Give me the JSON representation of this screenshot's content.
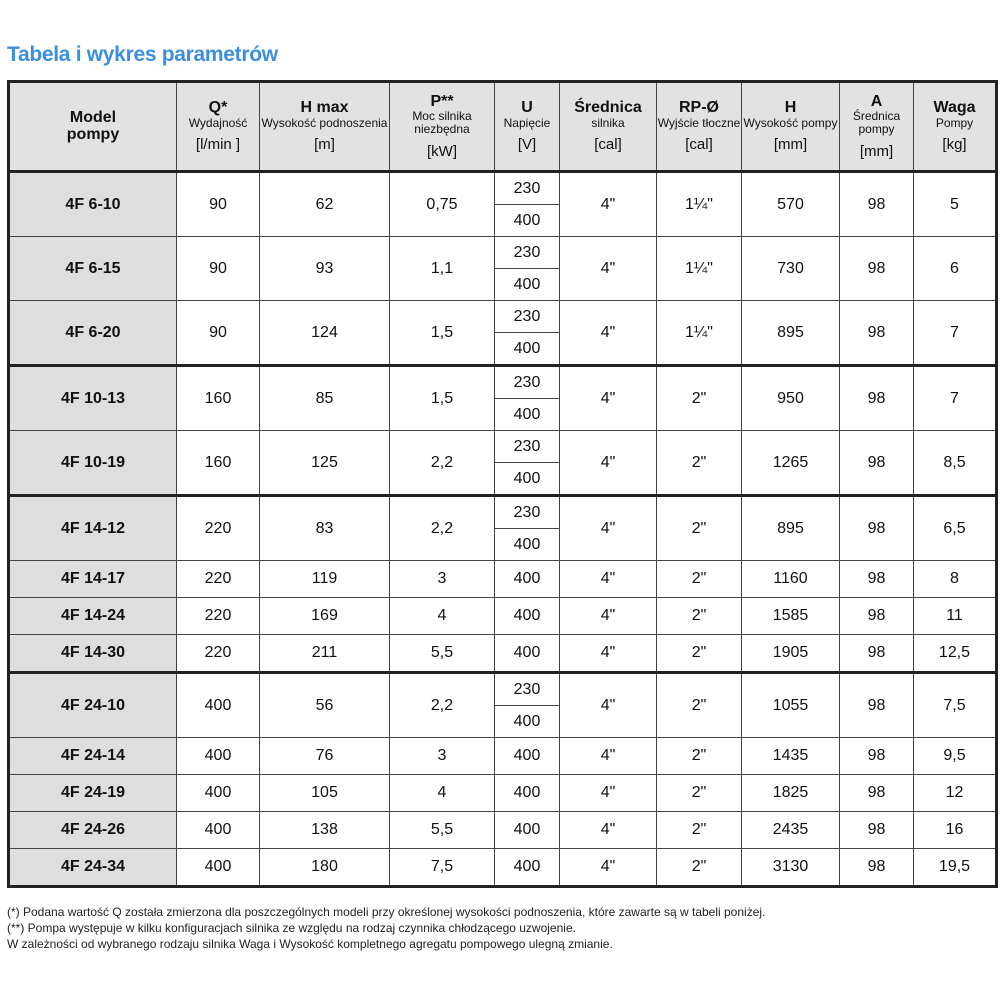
{
  "title": "Tabela i wykres parametrów",
  "columns": [
    {
      "t": "Model pompy",
      "s": "",
      "u": ""
    },
    {
      "t": "Q*",
      "s": "Wydajność",
      "u": "[l/min ]"
    },
    {
      "t": "H max",
      "s": "Wysokość podnoszenia",
      "u": "[m]"
    },
    {
      "t": "P**",
      "s": "Moc silnika niezbędna",
      "u": "[kW]"
    },
    {
      "t": "U",
      "s": "Napięcie",
      "u": "[V]"
    },
    {
      "t": "Średnica",
      "s": "silnika",
      "u": "[cal]"
    },
    {
      "t": "RP-Ø",
      "s": "Wyjście tłoczne",
      "u": "[cal]"
    },
    {
      "t": "H",
      "s": "Wysokość pompy",
      "u": "[mm]"
    },
    {
      "t": "A",
      "s": "Średnica pompy",
      "u": "[mm]"
    },
    {
      "t": "Waga",
      "s": "Pompy",
      "u": "[kg]"
    }
  ],
  "rows": [
    {
      "model": "4F 6-10",
      "q": "90",
      "h": "62",
      "p": "0,75",
      "u": [
        "230",
        "400"
      ],
      "d": "4\"",
      "rp": "1¼\"",
      "hp": "570",
      "a": "98",
      "w": "5",
      "group_start": true
    },
    {
      "model": "4F 6-15",
      "q": "90",
      "h": "93",
      "p": "1,1",
      "u": [
        "230",
        "400"
      ],
      "d": "4\"",
      "rp": "1¼\"",
      "hp": "730",
      "a": "98",
      "w": "6"
    },
    {
      "model": "4F 6-20",
      "q": "90",
      "h": "124",
      "p": "1,5",
      "u": [
        "230",
        "400"
      ],
      "d": "4\"",
      "rp": "1¼\"",
      "hp": "895",
      "a": "98",
      "w": "7"
    },
    {
      "model": "4F 10-13",
      "q": "160",
      "h": "85",
      "p": "1,5",
      "u": [
        "230",
        "400"
      ],
      "d": "4\"",
      "rp": "2\"",
      "hp": "950",
      "a": "98",
      "w": "7",
      "group_start": true
    },
    {
      "model": "4F 10-19",
      "q": "160",
      "h": "125",
      "p": "2,2",
      "u": [
        "230",
        "400"
      ],
      "d": "4\"",
      "rp": "2\"",
      "hp": "1265",
      "a": "98",
      "w": "8,5"
    },
    {
      "model": "4F 14-12",
      "q": "220",
      "h": "83",
      "p": "2,2",
      "u": [
        "230",
        "400"
      ],
      "d": "4\"",
      "rp": "2\"",
      "hp": "895",
      "a": "98",
      "w": "6,5",
      "group_start": true
    },
    {
      "model": "4F 14-17",
      "q": "220",
      "h": "119",
      "p": "3",
      "u": [
        "400"
      ],
      "d": "4\"",
      "rp": "2\"",
      "hp": "1160",
      "a": "98",
      "w": "8"
    },
    {
      "model": "4F 14-24",
      "q": "220",
      "h": "169",
      "p": "4",
      "u": [
        "400"
      ],
      "d": "4\"",
      "rp": "2\"",
      "hp": "1585",
      "a": "98",
      "w": "11"
    },
    {
      "model": "4F 14-30",
      "q": "220",
      "h": "211",
      "p": "5,5",
      "u": [
        "400"
      ],
      "d": "4\"",
      "rp": "2\"",
      "hp": "1905",
      "a": "98",
      "w": "12,5"
    },
    {
      "model": "4F 24-10",
      "q": "400",
      "h": "56",
      "p": "2,2",
      "u": [
        "230",
        "400"
      ],
      "d": "4\"",
      "rp": "2\"",
      "hp": "1055",
      "a": "98",
      "w": "7,5",
      "group_start": true
    },
    {
      "model": "4F 24-14",
      "q": "400",
      "h": "76",
      "p": "3",
      "u": [
        "400"
      ],
      "d": "4\"",
      "rp": "2\"",
      "hp": "1435",
      "a": "98",
      "w": "9,5"
    },
    {
      "model": "4F 24-19",
      "q": "400",
      "h": "105",
      "p": "4",
      "u": [
        "400"
      ],
      "d": "4\"",
      "rp": "2\"",
      "hp": "1825",
      "a": "98",
      "w": "12"
    },
    {
      "model": "4F 24-26",
      "q": "400",
      "h": "138",
      "p": "5,5",
      "u": [
        "400"
      ],
      "d": "4\"",
      "rp": "2\"",
      "hp": "2435",
      "a": "98",
      "w": "16"
    },
    {
      "model": "4F 24-34",
      "q": "400",
      "h": "180",
      "p": "7,5",
      "u": [
        "400"
      ],
      "d": "4\"",
      "rp": "2\"",
      "hp": "3130",
      "a": "98",
      "w": "19,5"
    }
  ],
  "notes": [
    "(*)  Podana wartość Q została zmierzona dla poszczególnych modeli przy określonej wysokości podnoszenia, które zawarte są w tabeli poniżej.",
    "(**) Pompa występuje w kilku konfiguracjach silnika ze względu na rodzaj czynnika chłodzącego uzwojenie.",
    "W zależności od wybranego rodzaju silnika Waga i Wysokość kompletnego agregatu pompowego ulegną zmianie."
  ]
}
